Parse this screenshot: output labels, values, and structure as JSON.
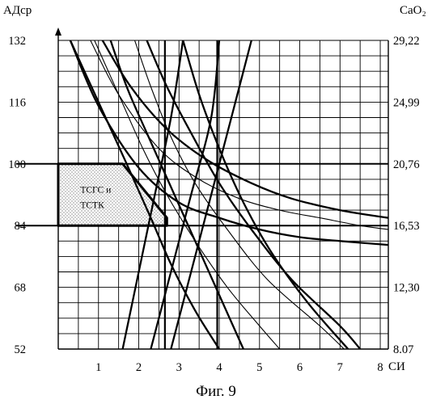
{
  "caption": "Фиг. 9",
  "chart_data": {
    "type": "line",
    "title": "",
    "left_axis_label": "АДср",
    "right_axis_label": "CaO₂",
    "x_axis_label": "СИ",
    "x_ticks": [
      1,
      2,
      3,
      4,
      5,
      6,
      7,
      8
    ],
    "xlim": [
      0,
      8.2
    ],
    "left_ticks": [
      "132",
      "116",
      "100",
      "84",
      "68",
      "52"
    ],
    "left_tick_values": [
      132,
      116,
      100,
      84,
      68,
      52
    ],
    "ylim": [
      52,
      132
    ],
    "right_ticks": [
      "29,22",
      "24,99",
      "20,76",
      "16,53",
      "12,30",
      "8.07"
    ],
    "grid": true,
    "region": {
      "label_line1": "ТСГС и",
      "label_line2": "ТСТК",
      "fill": "dotted",
      "polygon": [
        [
          0,
          100
        ],
        [
          1.6,
          100
        ],
        [
          2.7,
          86
        ],
        [
          2.7,
          84
        ],
        [
          0,
          84
        ]
      ]
    },
    "reference_lines": {
      "horizontal": [
        100,
        84
      ],
      "vertical": [
        2.65,
        3.95
      ]
    },
    "series": [
      {
        "style": "thick",
        "points": [
          [
            0.3,
            132
          ],
          [
            1.0,
            115
          ],
          [
            2.0,
            99
          ],
          [
            3.0,
            90
          ],
          [
            4.0,
            86
          ],
          [
            5.0,
            83
          ],
          [
            6.0,
            81
          ],
          [
            7.0,
            80
          ],
          [
            8.2,
            79
          ]
        ]
      },
      {
        "style": "thin",
        "points": [
          [
            0.8,
            132
          ],
          [
            1.5,
            118
          ],
          [
            2.5,
            104
          ],
          [
            3.5,
            96
          ],
          [
            4.5,
            91
          ],
          [
            5.5,
            88
          ],
          [
            6.5,
            86
          ],
          [
            7.5,
            84
          ],
          [
            8.2,
            83
          ]
        ]
      },
      {
        "style": "thick",
        "points": [
          [
            1.1,
            132
          ],
          [
            1.8,
            120
          ],
          [
            2.7,
            109
          ],
          [
            3.7,
            101
          ],
          [
            4.8,
            95
          ],
          [
            5.8,
            91
          ],
          [
            7.0,
            88
          ],
          [
            8.2,
            86
          ]
        ]
      },
      {
        "style": "thick",
        "points": [
          [
            1.3,
            132
          ],
          [
            1.7,
            120
          ],
          [
            2.2,
            108
          ],
          [
            2.8,
            94
          ],
          [
            3.4,
            80
          ],
          [
            4.0,
            66
          ],
          [
            4.6,
            52
          ]
        ]
      },
      {
        "style": "thin",
        "points": [
          [
            1.9,
            132
          ],
          [
            2.3,
            120
          ],
          [
            2.8,
            107
          ],
          [
            3.4,
            95
          ],
          [
            4.2,
            83
          ],
          [
            5.2,
            70
          ],
          [
            6.5,
            58
          ],
          [
            7.1,
            52
          ]
        ]
      },
      {
        "style": "thick",
        "points": [
          [
            2.2,
            132
          ],
          [
            2.7,
            120
          ],
          [
            3.3,
            108
          ],
          [
            4.0,
            95
          ],
          [
            4.8,
            83
          ],
          [
            5.8,
            70
          ],
          [
            7.0,
            58
          ],
          [
            7.5,
            52
          ]
        ]
      },
      {
        "style": "thick",
        "points": [
          [
            3.1,
            132
          ],
          [
            3.5,
            118
          ],
          [
            4.0,
            104
          ],
          [
            4.6,
            90
          ],
          [
            5.3,
            77
          ],
          [
            6.2,
            64
          ],
          [
            7.2,
            52
          ]
        ]
      },
      {
        "style": "thick",
        "points": [
          [
            0.3,
            132
          ],
          [
            1.0,
            116
          ],
          [
            1.7,
            100
          ],
          [
            2.3,
            86
          ],
          [
            2.8,
            74
          ],
          [
            3.4,
            62
          ],
          [
            4.0,
            52
          ]
        ]
      },
      {
        "style": "thin",
        "points": [
          [
            0.9,
            132
          ],
          [
            1.5,
            118
          ],
          [
            2.1,
            104
          ],
          [
            2.7,
            92
          ],
          [
            3.4,
            80
          ],
          [
            4.2,
            68
          ],
          [
            5.0,
            58
          ],
          [
            5.5,
            52
          ]
        ]
      },
      {
        "style": "thick",
        "points": [
          [
            2.8,
            52
          ],
          [
            3.3,
            72
          ],
          [
            3.8,
            92
          ],
          [
            4.3,
            112
          ],
          [
            4.8,
            132
          ]
        ]
      },
      {
        "style": "thick",
        "points": [
          [
            2.3,
            52
          ],
          [
            2.8,
            72
          ],
          [
            3.3,
            92
          ],
          [
            3.8,
            112
          ],
          [
            4.0,
            132
          ]
        ]
      },
      {
        "style": "thick",
        "points": [
          [
            1.6,
            52
          ],
          [
            2.0,
            72
          ],
          [
            2.4,
            92
          ],
          [
            2.8,
            112
          ],
          [
            3.1,
            132
          ]
        ]
      }
    ]
  }
}
